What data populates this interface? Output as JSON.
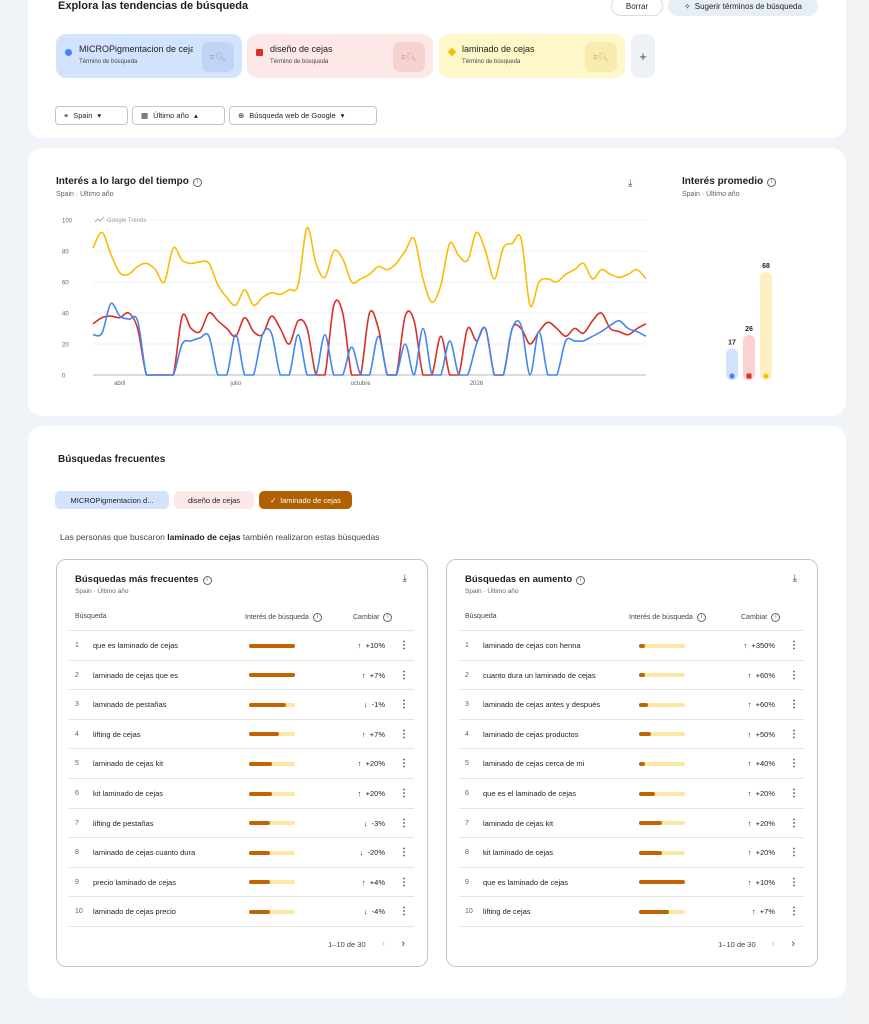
{
  "explore": {
    "title": "Explora las tendencias de búsqueda",
    "clear_label": "Borrar",
    "suggest_label": "Sugerir términos de búsqueda"
  },
  "terms": [
    {
      "name": "MICROPigmentacion de cejas",
      "subtitle": "Término de búsqueda",
      "color": "#4285f4"
    },
    {
      "name": "diseño de cejas",
      "subtitle": "Término de búsqueda",
      "color": "#d93025"
    },
    {
      "name": "laminado de cejas",
      "subtitle": "Término de búsqueda",
      "color": "#fbbc04"
    }
  ],
  "add_term_label": "+",
  "filters": {
    "geo": "Spain",
    "time": "Último año",
    "property": "Búsqueda web de Google"
  },
  "interest_over_time": {
    "title": "Interés a lo largo del tiempo",
    "subtitle": "Spain · Último año",
    "watermark": "Google Trends"
  },
  "average_interest": {
    "title": "Interés promedio",
    "subtitle": "Spain · Último año"
  },
  "chart_data": [
    {
      "type": "line",
      "title": "Interés a lo largo del tiempo",
      "ylim": [
        0,
        100
      ],
      "y_ticks": [
        0,
        20,
        40,
        60,
        80,
        100
      ],
      "x_tick_labels": [
        {
          "label": "abril",
          "week": 3
        },
        {
          "label": "julio",
          "week": 16
        },
        {
          "label": "octubre",
          "week": 30
        },
        {
          "label": "2026",
          "week": 43
        }
      ],
      "grid": true,
      "series": [
        {
          "name": "MICROPigmentacion de cejas",
          "color": "#4285f4",
          "values": [
            26,
            27,
            46,
            38,
            36,
            35,
            0,
            0,
            0,
            0,
            20,
            22,
            24,
            25,
            0,
            0,
            26,
            0,
            0,
            26,
            27,
            0,
            0,
            26,
            0,
            0,
            26,
            0,
            0,
            18,
            0,
            0,
            25,
            0,
            0,
            20,
            0,
            30,
            0,
            0,
            22,
            0,
            0,
            20,
            30,
            0,
            0,
            30,
            32,
            0,
            28,
            0,
            0,
            22,
            22,
            22,
            25,
            28,
            32,
            35,
            30,
            28,
            25
          ]
        },
        {
          "name": "diseño de cejas",
          "color": "#d93025",
          "values": [
            33,
            37,
            38,
            37,
            40,
            30,
            0,
            0,
            0,
            0,
            38,
            30,
            28,
            40,
            35,
            30,
            25,
            37,
            28,
            26,
            38,
            30,
            20,
            35,
            30,
            0,
            0,
            45,
            40,
            0,
            0,
            40,
            30,
            0,
            0,
            38,
            35,
            0,
            0,
            25,
            0,
            0,
            30,
            22,
            30,
            0,
            0,
            30,
            30,
            20,
            28,
            34,
            30,
            25,
            30,
            27,
            35,
            40,
            30,
            28,
            26,
            30,
            33
          ]
        },
        {
          "name": "laminado de cejas",
          "color": "#fbbc04",
          "values": [
            82,
            92,
            78,
            66,
            65,
            70,
            72,
            68,
            60,
            82,
            74,
            72,
            73,
            72,
            58,
            50,
            45,
            55,
            45,
            50,
            53,
            52,
            55,
            58,
            95,
            72,
            63,
            80,
            75,
            60,
            62,
            65,
            70,
            68,
            72,
            80,
            88,
            62,
            47,
            58,
            85,
            77,
            74,
            92,
            80,
            62,
            82,
            85,
            88,
            45,
            60,
            62,
            60,
            65,
            68,
            72,
            62,
            68,
            65,
            63,
            65,
            68,
            62
          ]
        }
      ]
    },
    {
      "type": "bar",
      "title": "Interés promedio",
      "categories": [
        "MICROPigmentacion de cejas",
        "diseño de cejas",
        "laminado de cejas"
      ],
      "values": [
        17,
        26,
        68
      ],
      "colors": [
        "#4285f4",
        "#d93025",
        "#fbbc04"
      ]
    }
  ],
  "related": {
    "title": "Búsquedas frecuentes",
    "chips": [
      "MICROPigmentacion d...",
      "diseño de cejas",
      "laminado de cejas"
    ],
    "selected_chip_check": "✓",
    "people_prefix": "Las personas que buscaron ",
    "people_term": "laminado de cejas",
    "people_suffix": " también realizaron estas búsquedas",
    "columns": {
      "query": "Búsqueda",
      "interest": "Interés de búsqueda",
      "change": "Cambiar"
    },
    "top": {
      "title": "Búsquedas más frecuentes",
      "subtitle": "Spain · Último año",
      "pager": "1–10 de 30",
      "rows": [
        {
          "rank": "1",
          "query": "que es laminado de cejas",
          "interest": 1.0,
          "dir": "↑",
          "change": "+10%"
        },
        {
          "rank": "2",
          "query": "laminado de cejas que es",
          "interest": 1.0,
          "dir": "↑",
          "change": "+7%"
        },
        {
          "rank": "3",
          "query": "laminado de pestañas",
          "interest": 0.8,
          "dir": "↓",
          "change": "-1%"
        },
        {
          "rank": "4",
          "query": "lifting de cejas",
          "interest": 0.65,
          "dir": "↑",
          "change": "+7%"
        },
        {
          "rank": "5",
          "query": "laminado de cejas kit",
          "interest": 0.5,
          "dir": "↑",
          "change": "+20%"
        },
        {
          "rank": "6",
          "query": "kit laminado de cejas",
          "interest": 0.5,
          "dir": "↑",
          "change": "+20%"
        },
        {
          "rank": "7",
          "query": "lifting de pestañas",
          "interest": 0.45,
          "dir": "↓",
          "change": "-3%"
        },
        {
          "rank": "8",
          "query": "laminado de cejas cuanto dura",
          "interest": 0.45,
          "dir": "↓",
          "change": "-20%"
        },
        {
          "rank": "9",
          "query": "precio laminado de cejas",
          "interest": 0.45,
          "dir": "↑",
          "change": "+4%"
        },
        {
          "rank": "10",
          "query": "laminado de cejas precio",
          "interest": 0.45,
          "dir": "↓",
          "change": "-4%"
        }
      ]
    },
    "rising": {
      "title": "Búsquedas en aumento",
      "subtitle": "Spain · Último año",
      "pager": "1–10 de 30",
      "rows": [
        {
          "rank": "1",
          "query": "laminado de cejas con henna",
          "interest": 0.12,
          "dir": "↑",
          "change": "+350%"
        },
        {
          "rank": "2",
          "query": "cuanto dura un laminado de cejas",
          "interest": 0.12,
          "dir": "↑",
          "change": "+60%"
        },
        {
          "rank": "3",
          "query": "laminado de cejas antes y después",
          "interest": 0.2,
          "dir": "↑",
          "change": "+60%"
        },
        {
          "rank": "4",
          "query": "laminado de cejas productos",
          "interest": 0.25,
          "dir": "↑",
          "change": "+50%"
        },
        {
          "rank": "5",
          "query": "laminado de cejas cerca de mi",
          "interest": 0.12,
          "dir": "↑",
          "change": "+40%"
        },
        {
          "rank": "6",
          "query": "que es el laminado de cejas",
          "interest": 0.35,
          "dir": "↑",
          "change": "+20%"
        },
        {
          "rank": "7",
          "query": "laminado de cejas kit",
          "interest": 0.5,
          "dir": "↑",
          "change": "+20%"
        },
        {
          "rank": "8",
          "query": "kit laminado de cejas",
          "interest": 0.5,
          "dir": "↑",
          "change": "+20%"
        },
        {
          "rank": "9",
          "query": "que es laminado de cejas",
          "interest": 1.0,
          "dir": "↑",
          "change": "+10%"
        },
        {
          "rank": "10",
          "query": "lifting de cejas",
          "interest": 0.65,
          "dir": "↑",
          "change": "+7%"
        }
      ]
    }
  },
  "icons": {
    "location": "location-pin-icon",
    "calendar": "calendar-icon",
    "globe": "globe-icon",
    "download": "download-icon",
    "info": "info-icon",
    "search_compare": "search-compare-icon",
    "sparkle": "sparkle-icon",
    "more": "more-vert-icon"
  }
}
